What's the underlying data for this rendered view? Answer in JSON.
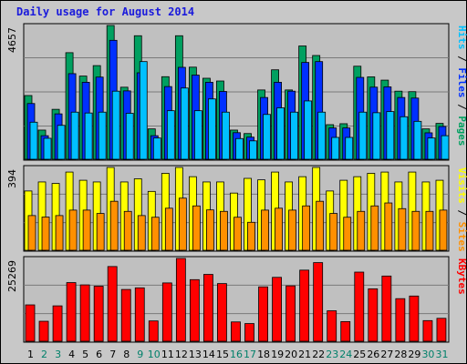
{
  "title": "Daily usage for August 2014",
  "colors": {
    "hits": "#00c0ff",
    "files": "#0030ff",
    "pages": "#00a060",
    "visits": "#ffff00",
    "sites": "#ff9000",
    "kbytes": "#ff0000",
    "weekday": "#000000",
    "weekend": "#00806a"
  },
  "chart_data": [
    {
      "type": "bar",
      "title": "Daily usage for August 2014",
      "categories": [
        "1",
        "2",
        "3",
        "4",
        "5",
        "6",
        "7",
        "8",
        "9",
        "10",
        "11",
        "12",
        "13",
        "14",
        "15",
        "16",
        "17",
        "18",
        "19",
        "20",
        "21",
        "22",
        "23",
        "24",
        "25",
        "26",
        "27",
        "28",
        "29",
        "30",
        "31"
      ],
      "weekend_days": [
        "2",
        "3",
        "9",
        "10",
        "16",
        "17",
        "23",
        "24",
        "30",
        "31"
      ],
      "ymax_label": "4657",
      "ymax": 4657,
      "legend": [
        {
          "text": "Pages",
          "color": "#00a060"
        },
        {
          "text": "Files",
          "color": "#0030ff"
        },
        {
          "text": "Hits",
          "color": "#00c0ff"
        }
      ],
      "series": [
        {
          "name": "Pages",
          "values": [
            2218,
            1015,
            1738,
            3710,
            2896,
            3260,
            4657,
            2508,
            4300,
            1057,
            2874,
            4300,
            3206,
            2820,
            2724,
            1015,
            895,
            2412,
            3114,
            2412,
            3944,
            3612,
            1204,
            1237,
            3239,
            2868,
            2754,
            2370,
            2353,
            1057,
            1248
          ]
        },
        {
          "name": "Files",
          "values": [
            1940,
            820,
            1580,
            2980,
            2680,
            2860,
            4140,
            2380,
            3010,
            820,
            2530,
            3200,
            2930,
            2680,
            2360,
            925,
            770,
            2150,
            2680,
            2370,
            3370,
            3400,
            1090,
            1090,
            2850,
            2510,
            2520,
            2150,
            2130,
            920,
            1140
          ]
        },
        {
          "name": "Hits",
          "values": [
            1290,
            730,
            1180,
            1640,
            1610,
            1640,
            2370,
            1600,
            3400,
            740,
            1690,
            2480,
            1690,
            2100,
            1640,
            720,
            640,
            1560,
            1790,
            1640,
            2030,
            1640,
            760,
            760,
            1640,
            1620,
            1660,
            1480,
            1320,
            740,
            820
          ]
        }
      ]
    },
    {
      "type": "bar",
      "ymax_label": "394",
      "ymax": 394,
      "legend": [
        {
          "text": "Sites",
          "color": "#ff9000"
        },
        {
          "text": "Visits",
          "color": "#ffff00"
        }
      ],
      "series": [
        {
          "name": "Visits",
          "values": [
            282,
            325,
            318,
            372,
            333,
            325,
            394,
            325,
            340,
            280,
            366,
            394,
            350,
            325,
            325,
            272,
            342,
            335,
            372,
            325,
            350,
            394,
            282,
            333,
            350,
            366,
            372,
            325,
            372,
            325,
            333
          ]
        },
        {
          "name": "Sites",
          "values": [
            165,
            158,
            165,
            191,
            191,
            175,
            233,
            185,
            165,
            157,
            200,
            248,
            211,
            192,
            185,
            157,
            133,
            191,
            200,
            191,
            211,
            233,
            175,
            157,
            185,
            211,
            225,
            198,
            185,
            185,
            191
          ]
        }
      ]
    },
    {
      "type": "bar",
      "ymax_label": "25269",
      "ymax": 25269,
      "legend": [
        {
          "text": "KBytes",
          "color": "#ff0000"
        }
      ],
      "series": [
        {
          "name": "KBytes",
          "values": [
            11100,
            6100,
            10800,
            17900,
            17200,
            16800,
            22800,
            15800,
            16300,
            6200,
            17800,
            25269,
            18800,
            20400,
            17600,
            5900,
            5400,
            16600,
            19500,
            16900,
            21700,
            24000,
            9300,
            6000,
            21100,
            16000,
            19900,
            13000,
            13800,
            6300,
            7000
          ]
        }
      ]
    }
  ]
}
